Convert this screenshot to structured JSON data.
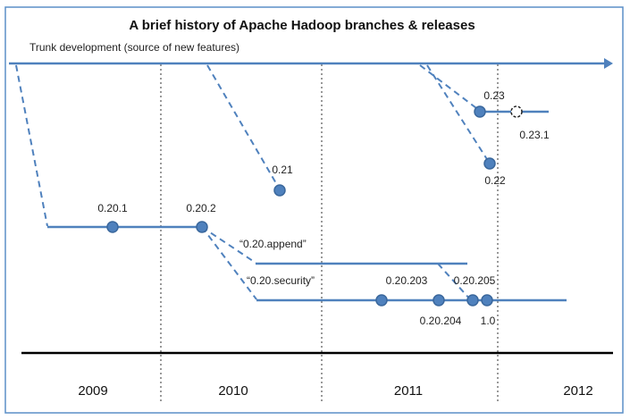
{
  "title": "A brief history of Apache Hadoop branches & releases",
  "trunk_label": "Trunk development (source of new features)",
  "colors": {
    "border": "#5b8fc7",
    "line": "#4f81bd",
    "node_fill": "#4f81bd",
    "node_stroke": "#3a679c",
    "text": "#222222",
    "timeline": "#000000"
  },
  "years": [
    "2009",
    "2010",
    "2011",
    "2012"
  ],
  "branches": {
    "append": "“0.20.append”",
    "security": "“0.20.security”"
  },
  "releases": {
    "r0201": "0.20.1",
    "r0202": "0.20.2",
    "r021": "0.21",
    "r022": "0.22",
    "r023": "0.23",
    "r0231": "0.23.1",
    "r020203": "0.20.203",
    "r020204": "0.20.204",
    "r020205": "0.20.205",
    "r10": "1.0"
  }
}
